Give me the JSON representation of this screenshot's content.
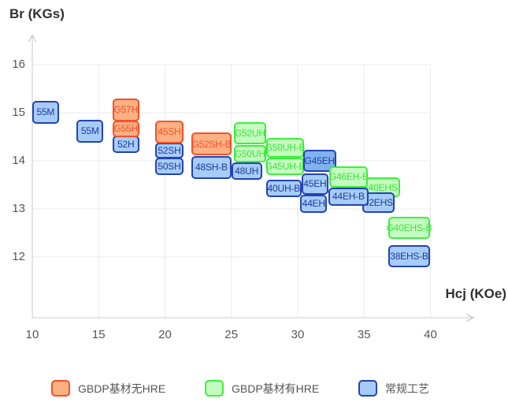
{
  "y_axis_title": "Br (KGs)",
  "x_axis_title": "Hcj (KOe)",
  "series": {
    "orange": {
      "name": "GBDP基材无HRE",
      "fill": "#fbb183",
      "stroke": "#f9502a",
      "text": "#f9502a"
    },
    "green": {
      "name": "GBDP基材有HRE",
      "fill": "#c5fcc0",
      "stroke": "#3df03d",
      "text": "#38e838"
    },
    "blue": {
      "name": "常规工艺",
      "fill": "#a6ccf7",
      "stroke": "#2343b4",
      "text": "#1e3a9e"
    }
  },
  "chart_data": {
    "type": "labeled-range-boxes",
    "title": "",
    "xlabel": "Hcj (KOe)",
    "ylabel": "Br (KGs)",
    "x_ticks": [
      10,
      15,
      20,
      25,
      30,
      35,
      40
    ],
    "y_ticks": [
      16,
      15,
      14,
      13,
      12
    ],
    "xlim": [
      10,
      43.2
    ],
    "ylim": [
      10.7,
      16.6
    ],
    "grid": true,
    "legend_position": "bottom",
    "boxes": [
      {
        "label": "55M",
        "series": "blue",
        "hcj": [
          10.0,
          12.0
        ],
        "br": [
          14.77,
          15.25
        ],
        "z": 1
      },
      {
        "label": "55M",
        "series": "blue",
        "hcj": [
          13.35,
          15.35
        ],
        "br": [
          14.38,
          14.85
        ],
        "z": 1
      },
      {
        "label": "G57H",
        "series": "orange",
        "hcj": [
          16.05,
          18.05
        ],
        "br": [
          14.82,
          15.3
        ],
        "z": 2
      },
      {
        "label": "G55H",
        "series": "orange",
        "hcj": [
          16.05,
          18.05
        ],
        "br": [
          14.49,
          14.84
        ],
        "z": 3
      },
      {
        "label": "52H",
        "series": "blue",
        "hcj": [
          16.05,
          18.05
        ],
        "br": [
          14.16,
          14.53
        ],
        "z": 1
      },
      {
        "label": "45SH",
        "series": "orange",
        "hcj": [
          19.25,
          21.4
        ],
        "br": [
          14.36,
          14.84
        ],
        "z": 2
      },
      {
        "label": "52SH",
        "series": "blue",
        "hcj": [
          19.25,
          21.4
        ],
        "br": [
          14.05,
          14.37
        ],
        "z": 1
      },
      {
        "label": "50SH",
        "series": "blue",
        "hcj": [
          19.25,
          21.4
        ],
        "br": [
          13.7,
          14.06
        ],
        "z": 1
      },
      {
        "label": "G52SH-B",
        "series": "orange",
        "hcj": [
          22.0,
          25.0
        ],
        "br": [
          14.11,
          14.59
        ],
        "z": 2
      },
      {
        "label": "48SH-B",
        "series": "blue",
        "hcj": [
          22.0,
          25.0
        ],
        "br": [
          13.63,
          14.1
        ],
        "z": 1
      },
      {
        "label": "G52UH",
        "series": "green",
        "hcj": [
          25.2,
          27.6
        ],
        "br": [
          14.34,
          14.8
        ],
        "z": 2
      },
      {
        "label": "G50UH",
        "series": "green",
        "hcj": [
          25.2,
          27.6
        ],
        "br": [
          13.97,
          14.33
        ],
        "z": 2
      },
      {
        "label": "48UH",
        "series": "blue",
        "hcj": [
          25.0,
          27.3
        ],
        "br": [
          13.61,
          13.97
        ],
        "z": 1
      },
      {
        "label": "G50UH-B",
        "series": "green",
        "hcj": [
          27.6,
          30.5
        ],
        "br": [
          14.07,
          14.48
        ],
        "z": 2
      },
      {
        "label": "G45UH-B",
        "series": "green",
        "hcj": [
          27.6,
          30.5
        ],
        "br": [
          13.71,
          14.06
        ],
        "z": 2
      },
      {
        "label": "40UH-B",
        "series": "blue",
        "hcj": [
          27.6,
          30.3
        ],
        "br": [
          13.24,
          13.61
        ],
        "z": 1
      },
      {
        "label": "G45EH",
        "series": "blue",
        "hcj": [
          30.4,
          32.9
        ],
        "br": [
          13.77,
          14.23
        ],
        "z": 3,
        "fill": "#7fb2ef"
      },
      {
        "label": "45EH",
        "series": "blue",
        "hcj": [
          30.3,
          32.3
        ],
        "br": [
          13.3,
          13.74
        ],
        "z": 2
      },
      {
        "label": "44EH",
        "series": "blue",
        "hcj": [
          30.2,
          32.2
        ],
        "br": [
          12.92,
          13.3
        ],
        "z": 1
      },
      {
        "label": "G46EH-B",
        "series": "green",
        "hcj": [
          32.4,
          35.3
        ],
        "br": [
          13.45,
          13.89
        ],
        "z": 4
      },
      {
        "label": "44EH-B",
        "series": "blue",
        "hcj": [
          32.3,
          35.35
        ],
        "br": [
          13.06,
          13.45
        ],
        "z": 3
      },
      {
        "label": "G40EHS",
        "series": "green",
        "hcj": [
          34.6,
          37.7
        ],
        "br": [
          13.24,
          13.66
        ],
        "z": 1
      },
      {
        "label": "42EHS",
        "series": "blue",
        "hcj": [
          34.85,
          37.3
        ],
        "br": [
          12.92,
          13.34
        ],
        "z": 2
      },
      {
        "label": "G40EHS-B",
        "series": "green",
        "hcj": [
          36.8,
          40.0
        ],
        "br": [
          12.37,
          12.83
        ],
        "z": 1
      },
      {
        "label": "38EHS-B",
        "series": "blue",
        "hcj": [
          36.8,
          40.0
        ],
        "br": [
          11.78,
          12.24
        ],
        "z": 1
      }
    ]
  }
}
